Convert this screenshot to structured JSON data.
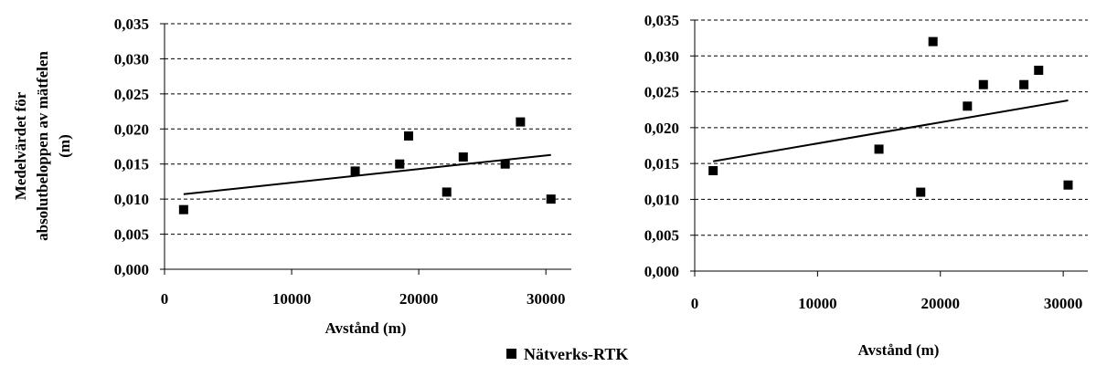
{
  "chart_data": [
    {
      "type": "scatter",
      "ylabel_lines": [
        "Medelvärdet för",
        "absolutbeloppen av mätfelen",
        "(m)"
      ],
      "xlabel": "Avstånd (m)",
      "xlim": [
        0,
        32000
      ],
      "ylim": [
        0,
        0.035
      ],
      "xticks": [
        0,
        10000,
        20000,
        30000
      ],
      "xtick_labels": [
        "0",
        "10000",
        "20000",
        "30000"
      ],
      "yticks": [
        0,
        0.005,
        0.01,
        0.015,
        0.02,
        0.025,
        0.03,
        0.035
      ],
      "ytick_labels": [
        "0,000",
        "0,005",
        "0,010",
        "0,015",
        "0,020",
        "0,025",
        "0,030",
        "0,035"
      ],
      "grid": "horizontal dashed",
      "series": [
        {
          "name": "Nätverks-RTK",
          "marker": "square",
          "color": "#000000",
          "x": [
            1500,
            15000,
            18500,
            19200,
            22200,
            23500,
            26800,
            28000,
            30400
          ],
          "y": [
            0.0085,
            0.014,
            0.015,
            0.019,
            0.011,
            0.016,
            0.015,
            0.021,
            0.01
          ]
        }
      ],
      "trendline": {
        "x": [
          1500,
          30400
        ],
        "y": [
          0.0107,
          0.0163
        ]
      }
    },
    {
      "type": "scatter",
      "xlabel": "Avstånd (m)",
      "xlim": [
        0,
        32000
      ],
      "ylim": [
        0,
        0.035
      ],
      "xticks": [
        0,
        10000,
        20000,
        30000
      ],
      "xtick_labels": [
        "0",
        "10000",
        "20000",
        "30000"
      ],
      "yticks": [
        0,
        0.005,
        0.01,
        0.015,
        0.02,
        0.025,
        0.03,
        0.035
      ],
      "ytick_labels": [
        "0,000",
        "0,005",
        "0,010",
        "0,015",
        "0,020",
        "0,025",
        "0,030",
        "0,035"
      ],
      "grid": "horizontal dashed",
      "series": [
        {
          "name": "Nätverks-RTK",
          "marker": "square",
          "color": "#000000",
          "x": [
            1500,
            15000,
            18400,
            19400,
            22200,
            23500,
            26800,
            28000,
            30400
          ],
          "y": [
            0.014,
            0.017,
            0.011,
            0.032,
            0.023,
            0.026,
            0.026,
            0.028,
            0.012
          ]
        }
      ],
      "trendline": {
        "x": [
          1500,
          30400
        ],
        "y": [
          0.0153,
          0.0238
        ]
      }
    }
  ],
  "legend": {
    "label": "Nätverks-RTK",
    "marker": "square",
    "placement": "bottom-center"
  }
}
